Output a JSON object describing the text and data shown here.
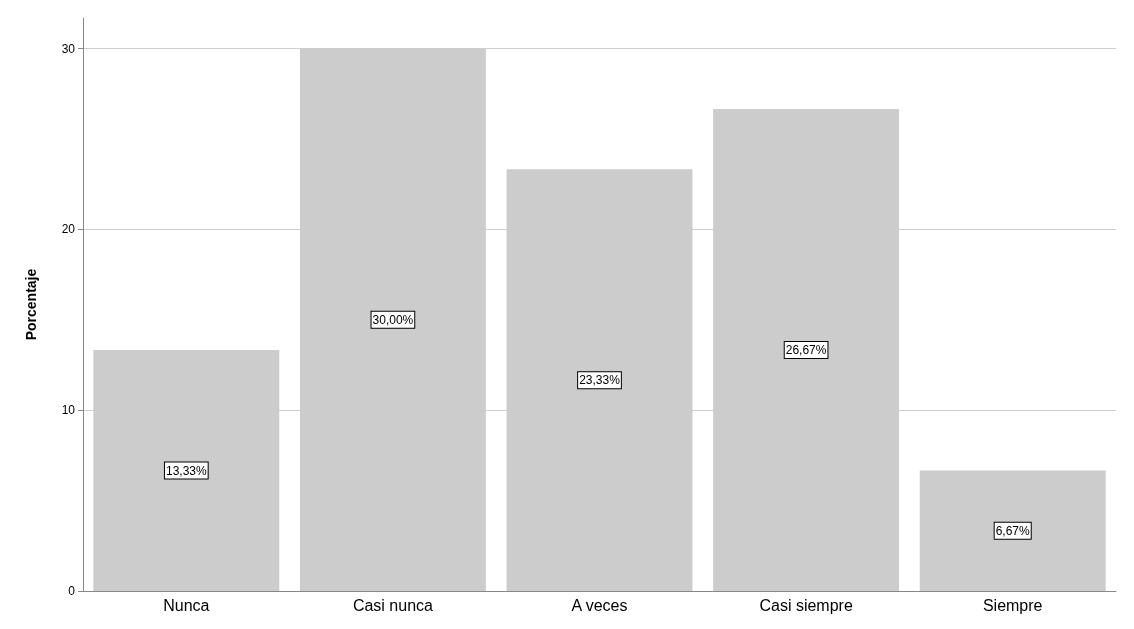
{
  "chart_data": {
    "type": "bar",
    "ylabel": "Porcentaje",
    "categories": [
      "Nunca",
      "Casi nunca",
      "A veces",
      "Casi siempre",
      "Siempre"
    ],
    "values": [
      13.33,
      30.0,
      23.33,
      26.67,
      6.67
    ],
    "value_labels": [
      "13,33%",
      "30,00%",
      "23,33%",
      "26,67%",
      "6,67%"
    ],
    "color": "#cccccc",
    "ylim": [
      0,
      31.7
    ],
    "yticks": [
      0,
      10,
      20,
      30
    ],
    "grid": "y"
  }
}
